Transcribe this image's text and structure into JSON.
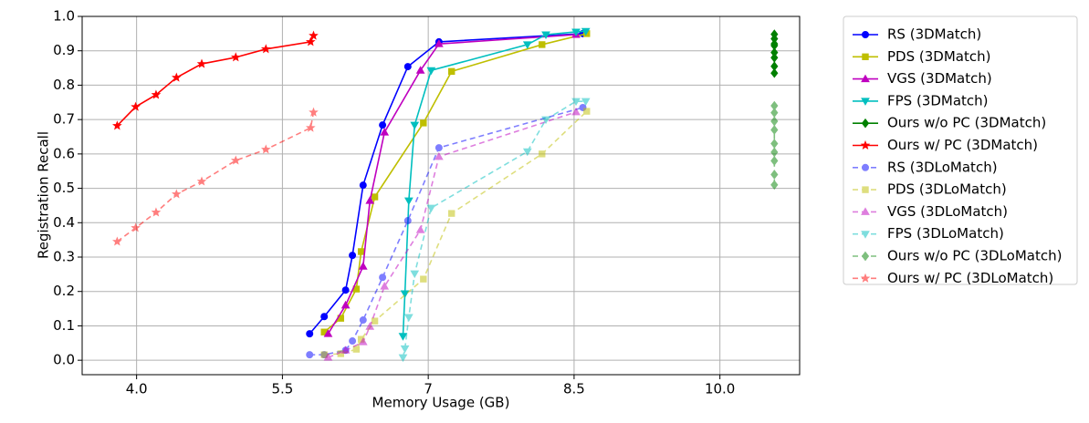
{
  "chart_data": {
    "type": "line",
    "xlabel": "Memory Usage (GB)",
    "ylabel": "Registration Recall",
    "xlim": [
      3.44,
      10.82
    ],
    "ylim": [
      -0.042,
      1.0
    ],
    "xticks": [
      {
        "value": 4,
        "label": "4.0"
      },
      5.5,
      7,
      8.5,
      {
        "value": 10,
        "label": "10.0"
      }
    ],
    "yticks": [
      {
        "value": 0,
        "label": "0.0"
      },
      0.1,
      0.2,
      0.3,
      0.4,
      0.5,
      0.6,
      0.7,
      0.8,
      0.9,
      {
        "value": 1,
        "label": "1.0"
      }
    ],
    "grid": true,
    "legend": "outside-upper-right",
    "series": [
      {
        "name": "RS (3DMatch)",
        "color": "#0000ff",
        "marker": "circle",
        "dashed": false,
        "alpha": 1,
        "x": [
          5.78,
          5.93,
          6.15,
          6.22,
          6.33,
          6.53,
          6.79,
          7.11,
          8.59
        ],
        "values": [
          0.077,
          0.127,
          0.204,
          0.305,
          0.509,
          0.684,
          0.854,
          0.926,
          0.95
        ]
      },
      {
        "name": "PDS (3DMatch)",
        "color": "#bfbf00",
        "marker": "square",
        "dashed": false,
        "alpha": 1,
        "x": [
          5.93,
          6.1,
          6.26,
          6.31,
          6.45,
          6.95,
          7.24,
          8.17,
          8.63
        ],
        "values": [
          0.082,
          0.122,
          0.207,
          0.316,
          0.475,
          0.69,
          0.84,
          0.918,
          0.95
        ]
      },
      {
        "name": "VGS (3DMatch)",
        "color": "#bf00bf",
        "marker": "triangle-up",
        "dashed": false,
        "alpha": 1,
        "x": [
          5.97,
          6.15,
          6.33,
          6.4,
          6.55,
          6.92,
          7.11,
          8.52
        ],
        "values": [
          0.077,
          0.16,
          0.273,
          0.464,
          0.663,
          0.843,
          0.92,
          0.947
        ]
      },
      {
        "name": "FPS (3DMatch)",
        "color": "#00bfbf",
        "marker": "triangle-down",
        "dashed": false,
        "alpha": 1,
        "x": [
          6.74,
          6.76,
          6.8,
          6.86,
          7.03,
          8.02,
          8.21,
          8.52,
          8.62
        ],
        "values": [
          0.07,
          0.194,
          0.464,
          0.684,
          0.843,
          0.918,
          0.947,
          0.955,
          0.957
        ]
      },
      {
        "name": "Ours w/o PC (3DMatch)",
        "color": "#008000",
        "marker": "diamond",
        "dashed": false,
        "alpha": 1,
        "x": [
          10.56,
          10.56,
          10.56,
          10.56,
          10.56,
          10.56,
          10.56,
          10.56
        ],
        "values": [
          0.835,
          0.855,
          0.88,
          0.895,
          0.915,
          0.92,
          0.935,
          0.948
        ]
      },
      {
        "name": "Ours w/ PC (3DMatch)",
        "color": "#ff0000",
        "marker": "star",
        "dashed": false,
        "alpha": 1,
        "x": [
          3.8,
          3.99,
          4.2,
          4.41,
          4.67,
          5.02,
          5.33,
          5.79,
          5.82
        ],
        "values": [
          0.682,
          0.737,
          0.772,
          0.822,
          0.862,
          0.881,
          0.905,
          0.926,
          0.944
        ]
      },
      {
        "name": "RS (3DLoMatch)",
        "color": "#0000ff",
        "marker": "circle",
        "dashed": true,
        "alpha": 0.5,
        "x": [
          5.78,
          5.93,
          6.15,
          6.22,
          6.33,
          6.53,
          6.79,
          7.11,
          8.59
        ],
        "values": [
          0.016,
          0.016,
          0.029,
          0.056,
          0.117,
          0.241,
          0.406,
          0.618,
          0.735
        ]
      },
      {
        "name": "PDS (3DLoMatch)",
        "color": "#bfbf00",
        "marker": "square",
        "dashed": true,
        "alpha": 0.5,
        "x": [
          5.93,
          6.1,
          6.26,
          6.31,
          6.45,
          6.95,
          7.24,
          8.17,
          8.63
        ],
        "values": [
          0.016,
          0.019,
          0.032,
          0.061,
          0.114,
          0.236,
          0.427,
          0.6,
          0.724
        ]
      },
      {
        "name": "VGS (3DLoMatch)",
        "color": "#bf00bf",
        "marker": "triangle-up",
        "dashed": true,
        "alpha": 0.5,
        "x": [
          5.97,
          6.15,
          6.33,
          6.4,
          6.55,
          6.92,
          7.11,
          8.52
        ],
        "values": [
          0.008,
          0.029,
          0.053,
          0.098,
          0.215,
          0.379,
          0.592,
          0.722
        ]
      },
      {
        "name": "FPS (3DLoMatch)",
        "color": "#00bfbf",
        "marker": "triangle-down",
        "dashed": true,
        "alpha": 0.5,
        "x": [
          6.74,
          6.76,
          6.8,
          6.86,
          7.03,
          8.02,
          8.21,
          8.52,
          8.62
        ],
        "values": [
          0.008,
          0.034,
          0.125,
          0.252,
          0.443,
          0.607,
          0.7,
          0.753,
          0.753
        ]
      },
      {
        "name": "Ours w/o PC (3DLoMatch)",
        "color": "#008000",
        "marker": "diamond",
        "dashed": true,
        "alpha": 0.5,
        "x": [
          10.56,
          10.56,
          10.56,
          10.56,
          10.56,
          10.56,
          10.56,
          10.56,
          10.56
        ],
        "values": [
          0.51,
          0.54,
          0.58,
          0.605,
          0.63,
          0.67,
          0.695,
          0.72,
          0.74
        ]
      },
      {
        "name": "Ours w/ PC (3DLoMatch)",
        "color": "#ff0000",
        "marker": "star",
        "dashed": true,
        "alpha": 0.5,
        "x": [
          3.8,
          3.99,
          4.2,
          4.41,
          4.67,
          5.02,
          5.33,
          5.79,
          5.82
        ],
        "values": [
          0.345,
          0.385,
          0.43,
          0.483,
          0.52,
          0.581,
          0.613,
          0.676,
          0.721
        ]
      }
    ]
  }
}
